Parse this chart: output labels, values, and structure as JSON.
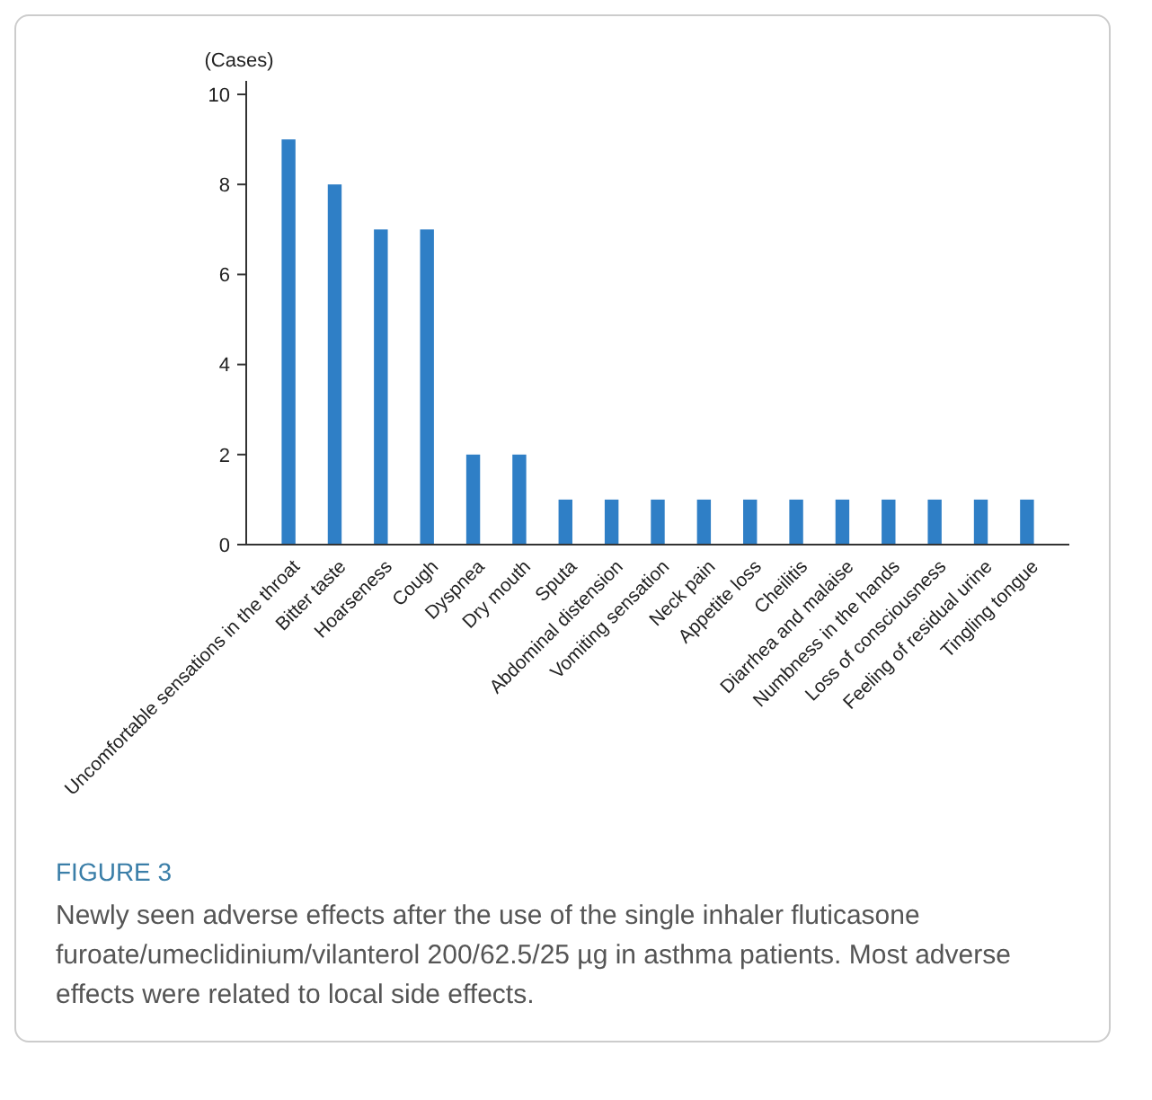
{
  "chart_data": {
    "type": "bar",
    "title": "FIGURE 3",
    "ylabel": "(Cases)",
    "categories": [
      "Uncomfortable sensations in the throat",
      "Bitter taste",
      "Hoarseness",
      "Cough",
      "Dyspnea",
      "Dry mouth",
      "Sputa",
      "Abdominal distension",
      "Vomiting sensation",
      "Neck pain",
      "Appetite loss",
      "Cheilitis",
      "Diarrhea and malaise",
      "Numbness in the hands",
      "Loss of consciousness",
      "Feeling of residual urine",
      "Tingling tongue"
    ],
    "values": [
      9,
      8,
      7,
      7,
      2,
      2,
      1,
      1,
      1,
      1,
      1,
      1,
      1,
      1,
      1,
      1,
      1
    ],
    "color": "#2f7fc6",
    "ylim": [
      0,
      10.3
    ],
    "yticks": [
      0,
      2,
      4,
      6,
      8,
      10
    ],
    "grid": false,
    "annotations": [
      "Newly seen adverse effects after the use of the single inhaler fluticasone furoate/umeclidinium/vilanterol 200/62.5/25 µg in asthma patients. Most adverse effects were related to local side effects."
    ]
  }
}
